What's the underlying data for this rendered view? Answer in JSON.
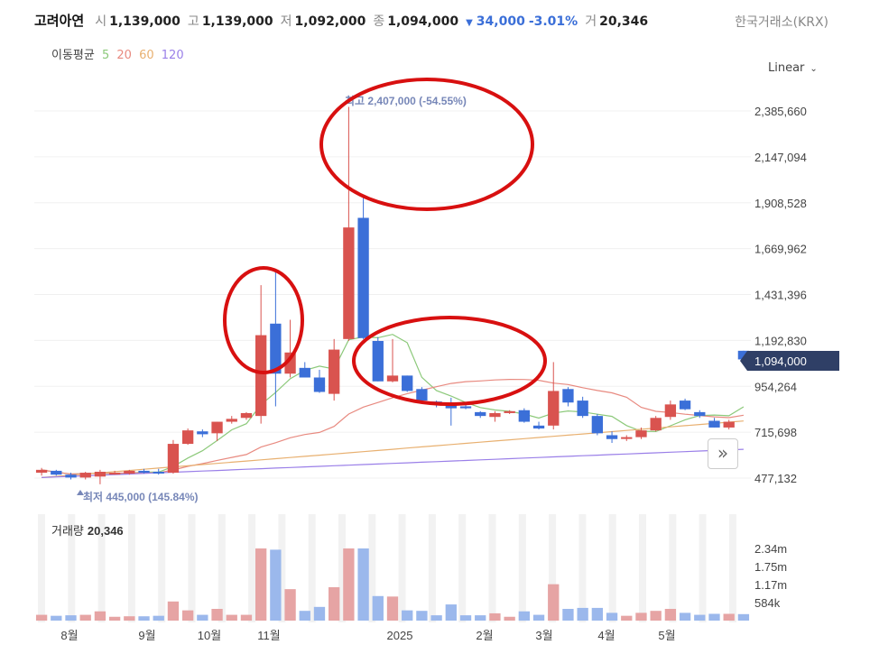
{
  "header": {
    "stock_name": "고려아연",
    "open_label": "시",
    "open": "1,139,000",
    "high_label": "고",
    "high": "1,139,000",
    "low_label": "저",
    "low": "1,092,000",
    "close_label": "종",
    "close": "1,094,000",
    "change_icon": "▼",
    "change": "34,000",
    "change_pct": "-3.01%",
    "volume_label": "거",
    "volume": "20,346",
    "exchange": "한국거래소(KRX)"
  },
  "moving_average": {
    "label": "이동평균",
    "periods": [
      {
        "label": "5",
        "color": "#8cc97a"
      },
      {
        "label": "20",
        "color": "#e88a80"
      },
      {
        "label": "60",
        "color": "#e8b070"
      },
      {
        "label": "120",
        "color": "#9a7fe8"
      }
    ]
  },
  "scale_selector": "Linear",
  "price_axis": [
    "2,385,660",
    "2,147,094",
    "1,908,528",
    "1,669,962",
    "1,431,396",
    "1,192,830",
    "954,264",
    "715,698",
    "477,132"
  ],
  "current_price_tag": "1,094,000",
  "high_annotation": "최고 2,407,000 (-54.55%)",
  "low_annotation": "최저 445,000 (145.84%)",
  "volume_panel": {
    "label": "거래량",
    "value": "20,346",
    "axis": [
      "2.34m",
      "1.75m",
      "1.17m",
      "584k"
    ]
  },
  "time_axis": [
    "8월",
    "9월",
    "10월",
    "11월",
    "2025",
    "2월",
    "3월",
    "4월",
    "5월"
  ],
  "colors": {
    "up": "#d9534f",
    "down": "#3b6fd8",
    "price_tag": "#2f3f66"
  },
  "chart_data": {
    "type": "candlestick",
    "series": [
      {
        "o": 505000,
        "h": 530000,
        "l": 490000,
        "c": 520000
      },
      {
        "o": 515000,
        "h": 520000,
        "l": 490000,
        "c": 495000
      },
      {
        "o": 495000,
        "h": 505000,
        "l": 470000,
        "c": 480000
      },
      {
        "o": 480000,
        "h": 510000,
        "l": 470000,
        "c": 505000
      },
      {
        "o": 485000,
        "h": 520000,
        "l": 445000,
        "c": 510000
      },
      {
        "o": 500000,
        "h": 515000,
        "l": 495000,
        "c": 505000
      },
      {
        "o": 500000,
        "h": 520000,
        "l": 495000,
        "c": 515000
      },
      {
        "o": 515000,
        "h": 525000,
        "l": 500000,
        "c": 505000
      },
      {
        "o": 510000,
        "h": 525000,
        "l": 495000,
        "c": 505000
      },
      {
        "o": 505000,
        "h": 675000,
        "l": 500000,
        "c": 655000
      },
      {
        "o": 655000,
        "h": 735000,
        "l": 650000,
        "c": 725000
      },
      {
        "o": 720000,
        "h": 730000,
        "l": 690000,
        "c": 705000
      },
      {
        "o": 710000,
        "h": 770000,
        "l": 670000,
        "c": 770000
      },
      {
        "o": 770000,
        "h": 800000,
        "l": 760000,
        "c": 785000
      },
      {
        "o": 790000,
        "h": 820000,
        "l": 780000,
        "c": 815000
      },
      {
        "o": 800000,
        "h": 1480000,
        "l": 760000,
        "c": 1220000
      },
      {
        "o": 1280000,
        "h": 1550000,
        "l": 850000,
        "c": 1020000
      },
      {
        "o": 1020000,
        "h": 1300000,
        "l": 1000000,
        "c": 1130000
      },
      {
        "o": 1050000,
        "h": 1080000,
        "l": 1000000,
        "c": 1000000
      },
      {
        "o": 1000000,
        "h": 1040000,
        "l": 920000,
        "c": 925000
      },
      {
        "o": 915000,
        "h": 1200000,
        "l": 880000,
        "c": 1145000
      },
      {
        "o": 1200000,
        "h": 2407000,
        "l": 1190000,
        "c": 1780000
      },
      {
        "o": 1830000,
        "h": 1940000,
        "l": 1200000,
        "c": 1205000
      },
      {
        "o": 1190000,
        "h": 1210000,
        "l": 980000,
        "c": 980000
      },
      {
        "o": 980000,
        "h": 1200000,
        "l": 975000,
        "c": 1010000
      },
      {
        "o": 1010000,
        "h": 1010000,
        "l": 925000,
        "c": 930000
      },
      {
        "o": 940000,
        "h": 950000,
        "l": 870000,
        "c": 880000
      },
      {
        "o": 875000,
        "h": 880000,
        "l": 845000,
        "c": 860000
      },
      {
        "o": 860000,
        "h": 895000,
        "l": 750000,
        "c": 840000
      },
      {
        "o": 850000,
        "h": 870000,
        "l": 835000,
        "c": 840000
      },
      {
        "o": 820000,
        "h": 825000,
        "l": 790000,
        "c": 800000
      },
      {
        "o": 795000,
        "h": 825000,
        "l": 770000,
        "c": 815000
      },
      {
        "o": 815000,
        "h": 830000,
        "l": 810000,
        "c": 825000
      },
      {
        "o": 830000,
        "h": 840000,
        "l": 765000,
        "c": 770000
      },
      {
        "o": 750000,
        "h": 770000,
        "l": 730000,
        "c": 735000
      },
      {
        "o": 750000,
        "h": 1080000,
        "l": 730000,
        "c": 930000
      },
      {
        "o": 940000,
        "h": 950000,
        "l": 850000,
        "c": 870000
      },
      {
        "o": 880000,
        "h": 900000,
        "l": 790000,
        "c": 800000
      },
      {
        "o": 800000,
        "h": 810000,
        "l": 700000,
        "c": 710000
      },
      {
        "o": 700000,
        "h": 720000,
        "l": 660000,
        "c": 680000
      },
      {
        "o": 690000,
        "h": 700000,
        "l": 670000,
        "c": 690000
      },
      {
        "o": 690000,
        "h": 740000,
        "l": 680000,
        "c": 725000
      },
      {
        "o": 725000,
        "h": 800000,
        "l": 720000,
        "c": 790000
      },
      {
        "o": 795000,
        "h": 880000,
        "l": 780000,
        "c": 860000
      },
      {
        "o": 880000,
        "h": 890000,
        "l": 830000,
        "c": 835000
      },
      {
        "o": 820000,
        "h": 830000,
        "l": 790000,
        "c": 800000
      },
      {
        "o": 775000,
        "h": 790000,
        "l": 740000,
        "c": 740000
      },
      {
        "o": 740000,
        "h": 780000,
        "l": 730000,
        "c": 770000
      },
      {
        "o": 1139000,
        "h": 1139000,
        "l": 1092000,
        "c": 1094000
      }
    ],
    "volume_ylim": [
      0,
      2340000
    ]
  }
}
